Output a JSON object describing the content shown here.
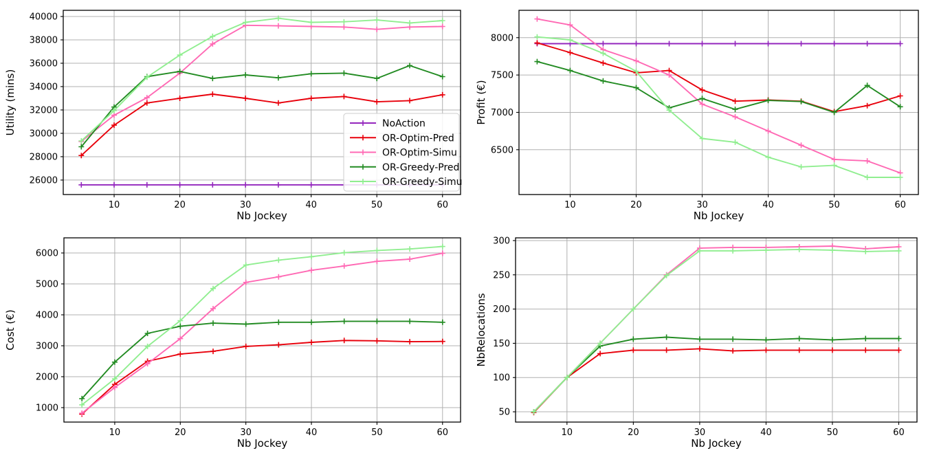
{
  "figure": {
    "background": "#ffffff",
    "grid_color": "#b0b0b0",
    "spine_color": "#000000",
    "text_color": "#000000"
  },
  "legend": {
    "location": "lower-right-of-first-chart",
    "entries": [
      {
        "label": "NoAction",
        "color": "#9326bd"
      },
      {
        "label": "OR-Optim-Pred",
        "color": "#e8000b"
      },
      {
        "label": "OR-Optim-Simu",
        "color": "#ff69b4"
      },
      {
        "label": "OR-Greedy-Pred",
        "color": "#228b22"
      },
      {
        "label": "OR-Greedy-Simu",
        "color": "#90ee90"
      }
    ]
  },
  "chart_data": [
    {
      "type": "line",
      "title": "",
      "xlabel": "Nb Jockey",
      "ylabel": "Utility (mins)",
      "x": [
        5,
        10,
        15,
        20,
        25,
        30,
        35,
        40,
        45,
        50,
        55,
        60
      ],
      "xticks": [
        10,
        20,
        30,
        40,
        50,
        60
      ],
      "yticks": [
        26000,
        28000,
        30000,
        32000,
        34000,
        36000,
        38000,
        40000
      ],
      "xlim": [
        2.25,
        62.75
      ],
      "ylim": [
        24760,
        40530
      ],
      "grid": true,
      "legend": true,
      "series": [
        {
          "name": "NoAction",
          "color": "#9326bd",
          "values": [
            25590,
            25590,
            25590,
            25590,
            25590,
            25590,
            25590,
            25590,
            25590,
            25590,
            25590,
            25590
          ]
        },
        {
          "name": "OR-Optim-Pred",
          "color": "#e8000b",
          "values": [
            28100,
            30700,
            32600,
            33000,
            33350,
            33000,
            32600,
            33000,
            33150,
            32700,
            32800,
            33300
          ]
        },
        {
          "name": "OR-Optim-Simu",
          "color": "#ff69b4",
          "values": [
            29300,
            31550,
            33050,
            35150,
            37650,
            39250,
            39200,
            39150,
            39100,
            38900,
            39100,
            39150
          ]
        },
        {
          "name": "OR-Greedy-Pred",
          "color": "#228b22",
          "values": [
            28850,
            32250,
            34850,
            35300,
            34700,
            35000,
            34750,
            35100,
            35150,
            34700,
            35800,
            34850
          ]
        },
        {
          "name": "OR-Greedy-Simu",
          "color": "#90ee90",
          "values": [
            29350,
            31950,
            34800,
            36700,
            38300,
            39500,
            39850,
            39500,
            39550,
            39700,
            39450,
            39650
          ]
        }
      ]
    },
    {
      "type": "line",
      "title": "",
      "xlabel": "Nb Jockey",
      "ylabel": "Profit (€)",
      "x": [
        5,
        10,
        15,
        20,
        25,
        30,
        35,
        40,
        45,
        50,
        55,
        60
      ],
      "xticks": [
        10,
        20,
        30,
        40,
        50,
        60
      ],
      "yticks": [
        6500,
        7000,
        7500,
        8000
      ],
      "xlim": [
        2.25,
        62.75
      ],
      "ylim": [
        5900,
        8366
      ],
      "grid": true,
      "legend": false,
      "series": [
        {
          "name": "NoAction",
          "color": "#9326bd",
          "values": [
            7920,
            7920,
            7920,
            7920,
            7920,
            7920,
            7920,
            7920,
            7920,
            7920,
            7920,
            7920
          ]
        },
        {
          "name": "OR-Optim-Pred",
          "color": "#e8000b",
          "values": [
            7930,
            7800,
            7660,
            7530,
            7560,
            7300,
            7150,
            7165,
            7150,
            7010,
            7090,
            7220
          ]
        },
        {
          "name": "OR-Optim-Simu",
          "color": "#ff69b4",
          "values": [
            8250,
            8170,
            7840,
            7690,
            7500,
            7110,
            6940,
            6750,
            6560,
            6370,
            6350,
            6190
          ]
        },
        {
          "name": "OR-Greedy-Pred",
          "color": "#228b22",
          "values": [
            7680,
            7560,
            7420,
            7330,
            7060,
            7185,
            7040,
            7160,
            7145,
            7000,
            7360,
            7075
          ]
        },
        {
          "name": "OR-Greedy-Simu",
          "color": "#90ee90",
          "values": [
            8010,
            7970,
            7790,
            7550,
            7030,
            6650,
            6600,
            6400,
            6270,
            6290,
            6130,
            6130
          ]
        }
      ]
    },
    {
      "type": "line",
      "title": "",
      "xlabel": "Nb Jockey",
      "ylabel": "Cost (€)",
      "x": [
        5,
        10,
        15,
        20,
        25,
        30,
        35,
        40,
        45,
        50,
        55,
        60
      ],
      "xticks": [
        10,
        20,
        30,
        40,
        50,
        60
      ],
      "yticks": [
        1000,
        2000,
        3000,
        4000,
        5000,
        6000
      ],
      "xlim": [
        2.25,
        62.75
      ],
      "ylim": [
        533,
        6489
      ],
      "grid": true,
      "legend": false,
      "series": [
        {
          "name": "OR-Optim-Pred",
          "color": "#e8000b",
          "values": [
            790,
            1750,
            2500,
            2730,
            2820,
            2980,
            3030,
            3110,
            3170,
            3160,
            3130,
            3140
          ]
        },
        {
          "name": "OR-Optim-Simu",
          "color": "#ff69b4",
          "values": [
            820,
            1650,
            2420,
            3230,
            4200,
            5050,
            5230,
            5440,
            5580,
            5730,
            5800,
            5990
          ]
        },
        {
          "name": "OR-Greedy-Pred",
          "color": "#228b22",
          "values": [
            1290,
            2470,
            3400,
            3630,
            3730,
            3700,
            3760,
            3760,
            3790,
            3790,
            3790,
            3760
          ]
        },
        {
          "name": "OR-Greedy-Simu",
          "color": "#90ee90",
          "values": [
            1090,
            1930,
            2980,
            3810,
            4850,
            5610,
            5770,
            5880,
            6010,
            6080,
            6130,
            6210
          ]
        }
      ]
    },
    {
      "type": "line",
      "title": "",
      "xlabel": "Nb Jockey",
      "ylabel": "NbRelocations",
      "x": [
        5,
        10,
        15,
        20,
        25,
        30,
        35,
        40,
        45,
        50,
        55,
        60
      ],
      "xticks": [
        10,
        20,
        30,
        40,
        50,
        60
      ],
      "yticks": [
        50,
        100,
        150,
        200,
        250,
        300
      ],
      "xlim": [
        2.25,
        62.75
      ],
      "ylim": [
        35,
        304
      ],
      "grid": true,
      "legend": false,
      "series": [
        {
          "name": "OR-Optim-Pred",
          "color": "#e8000b",
          "values": [
            49,
            100,
            135,
            140,
            140,
            142,
            139,
            140,
            140,
            140,
            140,
            140
          ]
        },
        {
          "name": "OR-Optim-Simu",
          "color": "#ff69b4",
          "values": [
            50,
            100,
            150,
            200,
            250,
            289,
            290,
            290,
            291,
            292,
            288,
            291
          ]
        },
        {
          "name": "OR-Greedy-Pred",
          "color": "#228b22",
          "values": [
            50,
            100,
            146,
            156,
            159,
            156,
            156,
            155,
            157,
            155,
            157,
            157
          ]
        },
        {
          "name": "OR-Greedy-Simu",
          "color": "#90ee90",
          "values": [
            50,
            100,
            150,
            200,
            249,
            285,
            285,
            286,
            287,
            286,
            284,
            285
          ]
        }
      ]
    }
  ]
}
